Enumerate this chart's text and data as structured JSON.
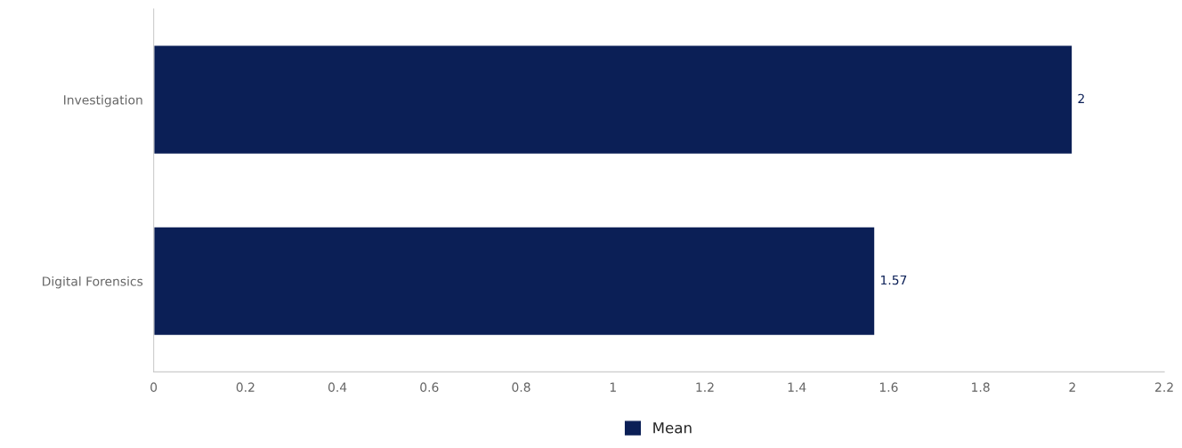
{
  "chart_data": {
    "type": "bar",
    "orientation": "horizontal",
    "categories": [
      "Investigation",
      "Digital Forensics"
    ],
    "series": [
      {
        "name": "Mean",
        "color": "#0b1f56",
        "values": [
          2,
          1.57
        ]
      }
    ],
    "xlim": [
      0,
      2.2
    ],
    "xticks": [
      0,
      0.2,
      0.4,
      0.6,
      0.8,
      1,
      1.2,
      1.4,
      1.6,
      1.8,
      2,
      2.2
    ],
    "data_labels": true,
    "grid": false,
    "legend": "bottom"
  }
}
